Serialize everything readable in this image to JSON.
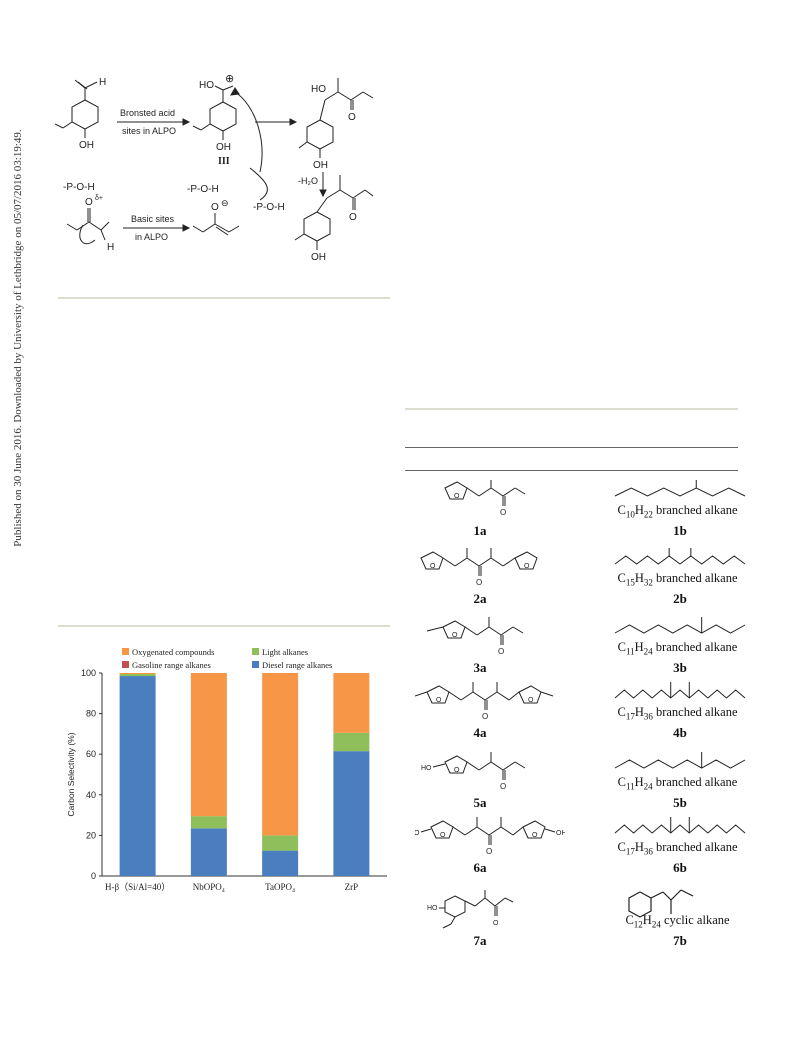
{
  "sidebar": {
    "text": "Published on 30 June 2016. Downloaded by University of Lethbridge on 05/07/2016 03:19:49."
  },
  "scheme": {
    "aldehyde_h": "H",
    "aldehyde_oh": "OH",
    "arrow1_line1": "Bronsted acid",
    "arrow1_line2": "sites in ALPO",
    "carb_ho": "HO",
    "carb_oh": "OH",
    "carb_plus": "⊕",
    "intermediate_label": "III",
    "ketone_p": "-P-O-H",
    "ketone_delta": "δ+",
    "ketone_o": "O",
    "ketone_h": "H",
    "arrow2_line1": "Basic sites",
    "arrow2_line2": "in ALPO",
    "enol_p": "-P-O-H",
    "enol_o": "O",
    "enol_minus": "⊖",
    "regen_p": "-P-O-H",
    "aldol_ho": "HO",
    "aldol_o": "O",
    "aldol_oh": "OH",
    "dehyd": "-H₂O",
    "prod_o": "O",
    "prod_oh": "OH"
  },
  "chart_data": {
    "type": "bar",
    "stacked": true,
    "categories": [
      "H-β（Si/Al=40）",
      "NbOPO₄",
      "TaOPO₄",
      "ZrP"
    ],
    "series": [
      {
        "name": "Diesel range alkanes",
        "color": "#4a7ebf",
        "values": [
          98.5,
          23.5,
          12.5,
          61.5
        ]
      },
      {
        "name": "Gasoline range alkanes",
        "color": "#c0504d",
        "values": [
          0,
          0,
          0,
          0
        ]
      },
      {
        "name": "Light alkanes",
        "color": "#8fbf5a",
        "values": [
          1.0,
          6.0,
          7.5,
          9.0
        ]
      },
      {
        "name": "Oxygenated compounds",
        "color": "#f79646",
        "values": [
          0.5,
          70.5,
          80.0,
          29.5
        ]
      }
    ],
    "legend_order": [
      "Oxygenated compounds",
      "Light alkanes",
      "Gasoline range alkanes",
      "Diesel range alkanes"
    ],
    "ylabel": "Carbon Selectivity (%)",
    "ylim": [
      0,
      100
    ],
    "yticks": [
      "0",
      "20",
      "40",
      "60",
      "80",
      "100"
    ],
    "legend_position": "top"
  },
  "compounds": {
    "left": [
      {
        "label": "1a"
      },
      {
        "label": "2a"
      },
      {
        "label": "3a"
      },
      {
        "label": "4a"
      },
      {
        "label": "5a"
      },
      {
        "label": "6a"
      },
      {
        "label": "7a"
      }
    ],
    "left_text": {
      "o": "O",
      "ho": "HO",
      "oh": "OH"
    },
    "right": [
      {
        "formula_c": "C",
        "c_sub": "10",
        "formula_h": "H",
        "h_sub": "22",
        "suffix": " branched alkane",
        "label": "1b"
      },
      {
        "formula_c": "C",
        "c_sub": "15",
        "formula_h": "H",
        "h_sub": "32",
        "suffix": " branched alkane",
        "label": "2b"
      },
      {
        "formula_c": "C",
        "c_sub": "11",
        "formula_h": "H",
        "h_sub": "24",
        "suffix": " branched alkane",
        "label": "3b"
      },
      {
        "formula_c": "C",
        "c_sub": "17",
        "formula_h": "H",
        "h_sub": "36",
        "suffix": " branched alkane",
        "label": "4b"
      },
      {
        "formula_c": "C",
        "c_sub": "11",
        "formula_h": "H",
        "h_sub": "24",
        "suffix": " branched alkane",
        "label": "5b"
      },
      {
        "formula_c": "C",
        "c_sub": "17",
        "formula_h": "H",
        "h_sub": "36",
        "suffix": " branched alkane",
        "label": "6b"
      },
      {
        "formula_c": "C",
        "c_sub": "12",
        "formula_h": "H",
        "h_sub": "24",
        "suffix": " cyclic alkane",
        "label": "7b"
      }
    ]
  }
}
